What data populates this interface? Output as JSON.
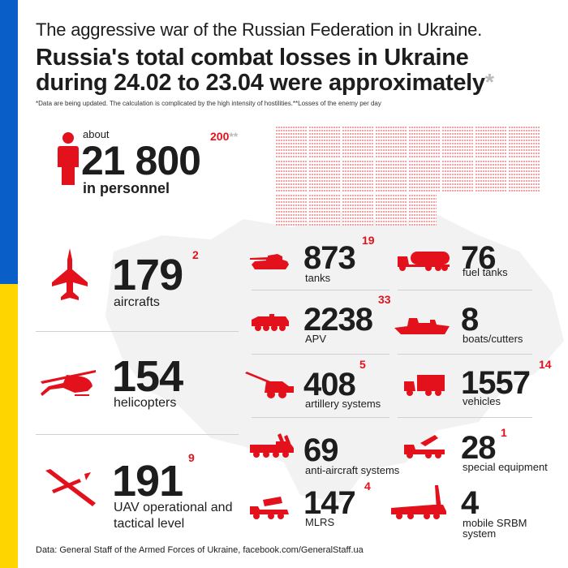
{
  "header": {
    "subtitle": "The aggressive war of the Russian Federation in Ukraine.",
    "title_line1": "Russia's total combat losses in Ukraine",
    "title_line2": "during 24.02 to 23.04 were approximately",
    "title_star": "*",
    "note": "*Data are being updated. The calculation is complicated by the high intensity of hostilities.**Losses of the enemy per day"
  },
  "personnel": {
    "about": "about",
    "value": "21 800",
    "per_day": "200",
    "per_day_marker": "**",
    "label": "in personnel"
  },
  "items": {
    "aircrafts": {
      "value": "179",
      "per_day": "2",
      "label": "aircrafts"
    },
    "helicopters": {
      "value": "154",
      "per_day": "",
      "label": "helicopters"
    },
    "uav": {
      "value": "191",
      "per_day": "9",
      "label_line1": "UAV operational and",
      "label_line2": "tactical level"
    },
    "tanks": {
      "value": "873",
      "per_day": "19",
      "label": "tanks"
    },
    "apv": {
      "value": "2238",
      "per_day": "33",
      "label": "APV"
    },
    "artillery": {
      "value": "408",
      "per_day": "5",
      "label": "artillery systems"
    },
    "anti_aircraft": {
      "value": "69",
      "per_day": "",
      "label": "anti-aircraft systems"
    },
    "mlrs": {
      "value": "147",
      "per_day": "4",
      "label": "MLRS"
    },
    "fuel_tanks": {
      "value": "76",
      "per_day": "",
      "label": "fuel tanks"
    },
    "boats": {
      "value": "8",
      "per_day": "",
      "label": "boats/cutters"
    },
    "vehicles": {
      "value": "1557",
      "per_day": "14",
      "label": "vehicles"
    },
    "special_equipment": {
      "value": "28",
      "per_day": "1",
      "label": "special equipment"
    },
    "srbm": {
      "value": "4",
      "per_day": "",
      "label_line1": "mobile SRBM",
      "label_line2": "system"
    }
  },
  "footer": {
    "source": "Data: General Staff of the Armed Forces of Ukraine, facebook.com/GeneralStaff.ua"
  },
  "colors": {
    "accent_red": "#e3111c",
    "grid_pink": "#f4a3a7",
    "flag_blue": "#0a5ec8",
    "flag_yellow": "#ffd500"
  },
  "icons": [
    "person-icon",
    "fighter-jet-icon",
    "helicopter-icon",
    "drone-icon",
    "tank-icon",
    "apc-icon",
    "artillery-icon",
    "anti-aircraft-icon",
    "mlrs-icon",
    "fuel-truck-icon",
    "boat-icon",
    "truck-icon",
    "special-vehicle-icon",
    "srbm-launcher-icon"
  ]
}
